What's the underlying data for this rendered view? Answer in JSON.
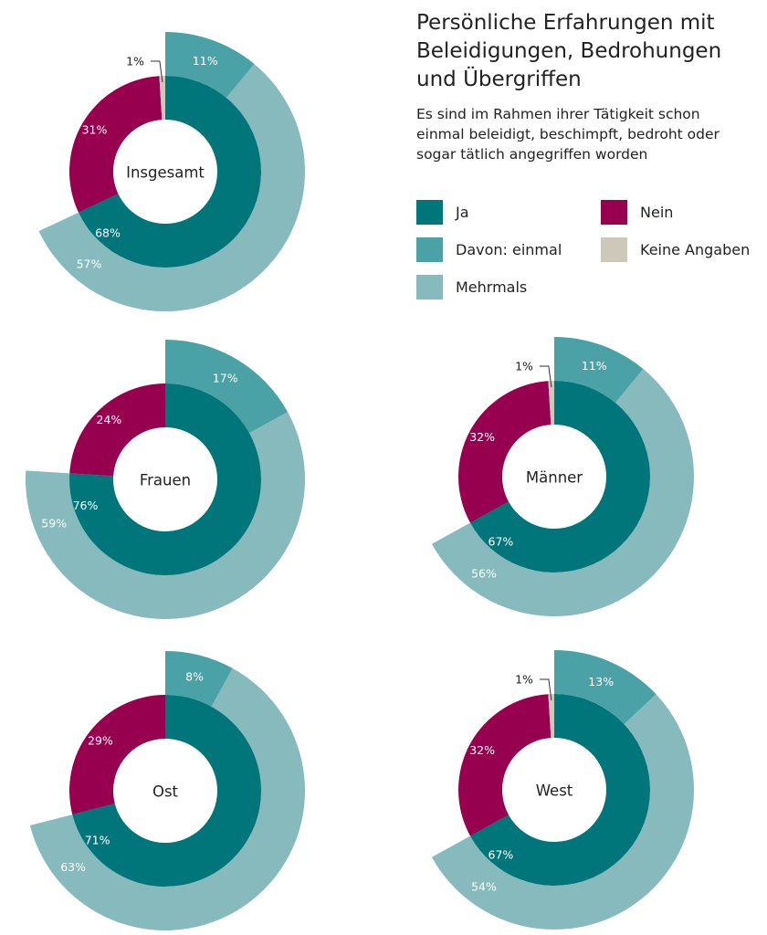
{
  "title": "Persönliche Erfahrungen mit\nBeleidigungen, Bedrohungen\nund Übergriffen",
  "subtitle": "Es sind im Rahmen ihrer Tätigkeit schon\neinmal beleidigt, beschimpft, bedroht oder\nsogar tätlich angegriffen worden",
  "legend": [
    {
      "label": "Ja",
      "color": "#00767a"
    },
    {
      "label": "Nein",
      "color": "#96004f"
    },
    {
      "label": "Davon: einmal",
      "color": "#4aa2a6"
    },
    {
      "label": "Keine Angaben",
      "color": "#ccc9bb"
    },
    {
      "label": "Mehrmals",
      "color": "#87babd"
    }
  ],
  "chart_data": [
    {
      "type": "pie",
      "title": "Insgesamt",
      "inner": [
        {
          "name": "Ja",
          "value": 68
        },
        {
          "name": "Nein",
          "value": 31
        },
        {
          "name": "Keine Angaben",
          "value": 1
        }
      ],
      "outer": [
        {
          "name": "Davon: einmal",
          "value": 11
        },
        {
          "name": "Mehrmals",
          "value": 57
        }
      ],
      "labels": {
        "Ja": "68%",
        "Nein": "31%",
        "Keine Angaben": "1%",
        "Davon: einmal": "11%",
        "Mehrmals": "57%"
      }
    },
    {
      "type": "pie",
      "title": "Frauen",
      "inner": [
        {
          "name": "Ja",
          "value": 76
        },
        {
          "name": "Nein",
          "value": 24
        }
      ],
      "outer": [
        {
          "name": "Davon: einmal",
          "value": 17
        },
        {
          "name": "Mehrmals",
          "value": 59
        }
      ],
      "labels": {
        "Ja": "76%",
        "Nein": "24%",
        "Davon: einmal": "17%",
        "Mehrmals": "59%"
      }
    },
    {
      "type": "pie",
      "title": "Männer",
      "inner": [
        {
          "name": "Ja",
          "value": 67
        },
        {
          "name": "Nein",
          "value": 32
        },
        {
          "name": "Keine Angaben",
          "value": 1
        }
      ],
      "outer": [
        {
          "name": "Davon: einmal",
          "value": 11
        },
        {
          "name": "Mehrmals",
          "value": 56
        }
      ],
      "labels": {
        "Ja": "67%",
        "Nein": "32%",
        "Keine Angaben": "1%",
        "Davon: einmal": "11%",
        "Mehrmals": "56%"
      }
    },
    {
      "type": "pie",
      "title": "Ost",
      "inner": [
        {
          "name": "Ja",
          "value": 71
        },
        {
          "name": "Nein",
          "value": 29
        }
      ],
      "outer": [
        {
          "name": "Davon: einmal",
          "value": 8
        },
        {
          "name": "Mehrmals",
          "value": 63
        }
      ],
      "labels": {
        "Ja": "71%",
        "Nein": "29%",
        "Davon: einmal": "8%",
        "Mehrmals": "63%"
      }
    },
    {
      "type": "pie",
      "title": "West",
      "inner": [
        {
          "name": "Ja",
          "value": 67
        },
        {
          "name": "Nein",
          "value": 32
        },
        {
          "name": "Keine Angaben",
          "value": 1
        }
      ],
      "outer": [
        {
          "name": "Davon: einmal",
          "value": 13
        },
        {
          "name": "Mehrmals",
          "value": 54
        }
      ],
      "labels": {
        "Ja": "67%",
        "Nein": "32%",
        "Keine Angaben": "1%",
        "Davon: einmal": "13%",
        "Mehrmals": "54%"
      }
    }
  ]
}
